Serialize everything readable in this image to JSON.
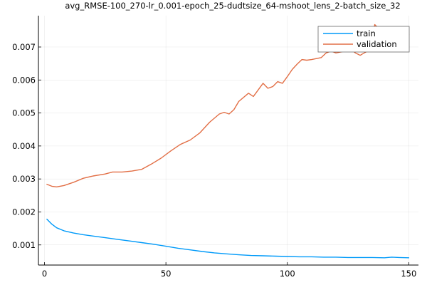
{
  "chart_data": {
    "type": "line",
    "title": "avg_RMSE-100_270-lr_0.001-epoch_25-dudtsize_64-mshoot_lens_2-batch_size_32",
    "xlabel": "",
    "ylabel": "",
    "xlim": [
      -2.5,
      154
    ],
    "ylim": [
      0.00039,
      0.00795
    ],
    "xticks": [
      0,
      50,
      100,
      150
    ],
    "xtick_labels": [
      "0",
      "50",
      "100",
      "150"
    ],
    "yticks": [
      0.001,
      0.002,
      0.003,
      0.004,
      0.005,
      0.006,
      0.007
    ],
    "ytick_labels": [
      "0.001",
      "0.002",
      "0.003",
      "0.004",
      "0.005",
      "0.006",
      "0.007"
    ],
    "grid": true,
    "legend": "top-right",
    "series": [
      {
        "name": "train",
        "color": "#009af9",
        "x": [
          1,
          3,
          5,
          8,
          12,
          16,
          20,
          25,
          30,
          35,
          40,
          45,
          50,
          55,
          60,
          65,
          70,
          75,
          80,
          85,
          90,
          95,
          100,
          105,
          110,
          115,
          120,
          125,
          130,
          135,
          140,
          143,
          146,
          150
        ],
        "y": [
          0.00178,
          0.00163,
          0.00152,
          0.00143,
          0.00136,
          0.00131,
          0.00127,
          0.00122,
          0.00117,
          0.00112,
          0.00107,
          0.00102,
          0.00096,
          0.0009,
          0.00085,
          0.0008,
          0.00076,
          0.00073,
          0.0007,
          0.00068,
          0.00067,
          0.00066,
          0.00065,
          0.00064,
          0.00064,
          0.00063,
          0.00063,
          0.00062,
          0.00062,
          0.00062,
          0.00061,
          0.00063,
          0.00062,
          0.00061
        ]
      },
      {
        "name": "validation",
        "color": "#e26f46",
        "x": [
          1,
          3,
          5,
          8,
          12,
          16,
          20,
          25,
          28,
          32,
          36,
          40,
          44,
          48,
          52,
          56,
          60,
          64,
          68,
          72,
          74,
          76,
          78,
          80,
          84,
          86,
          88,
          90,
          92,
          94,
          96,
          98,
          100,
          102,
          104,
          106,
          108,
          110,
          114,
          116,
          118,
          120,
          124,
          126,
          128,
          130,
          134,
          136,
          138,
          140,
          142,
          144,
          146,
          148,
          150
        ],
        "y": [
          0.00284,
          0.00278,
          0.00276,
          0.0028,
          0.0029,
          0.00302,
          0.00309,
          0.00315,
          0.00321,
          0.00321,
          0.00324,
          0.00329,
          0.00345,
          0.00363,
          0.00385,
          0.00405,
          0.00418,
          0.0044,
          0.00472,
          0.00497,
          0.00502,
          0.00497,
          0.0051,
          0.00535,
          0.0056,
          0.0055,
          0.0057,
          0.0059,
          0.00575,
          0.0058,
          0.00595,
          0.0059,
          0.0061,
          0.00632,
          0.00648,
          0.00662,
          0.0066,
          0.00662,
          0.00668,
          0.00682,
          0.00688,
          0.00682,
          0.00688,
          0.00696,
          0.00682,
          0.00675,
          0.00692,
          0.00768,
          0.00752,
          0.00748,
          0.0074,
          0.00745,
          0.0074,
          0.00735,
          0.00738
        ]
      }
    ]
  }
}
